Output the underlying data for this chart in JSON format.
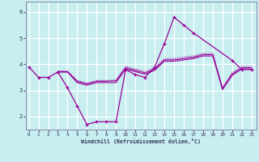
{
  "bg_color": "#c8eef0",
  "line_color": "#990099",
  "grid_color": "#ffffff",
  "xlabel": "Windchill (Refroidissement éolien,°C)",
  "x_ticks": [
    0,
    1,
    2,
    3,
    4,
    5,
    6,
    7,
    8,
    9,
    10,
    11,
    12,
    13,
    14,
    15,
    16,
    17,
    18,
    19,
    20,
    21,
    22,
    23
  ],
  "y_ticks": [
    2,
    3,
    4,
    5,
    6
  ],
  "ylim": [
    1.5,
    6.4
  ],
  "xlim": [
    -0.3,
    23.5
  ],
  "main_x": [
    0,
    1,
    2,
    3,
    4,
    5,
    6,
    7,
    8,
    9,
    10,
    11,
    12,
    13,
    14,
    15,
    16,
    17,
    21,
    22,
    23
  ],
  "main_y": [
    3.9,
    3.5,
    3.5,
    3.7,
    3.1,
    2.4,
    1.7,
    1.8,
    1.8,
    1.8,
    3.8,
    3.6,
    3.5,
    3.9,
    4.8,
    5.8,
    5.5,
    5.2,
    4.15,
    3.8,
    3.8
  ],
  "line2_x": [
    3,
    4,
    5,
    6,
    7,
    8,
    9,
    10,
    11,
    12,
    13,
    14,
    15,
    16,
    17,
    18,
    19,
    20,
    21,
    22,
    23
  ],
  "line2_y": [
    3.7,
    3.7,
    3.3,
    3.2,
    3.3,
    3.3,
    3.3,
    3.82,
    3.72,
    3.62,
    3.77,
    4.12,
    4.12,
    4.17,
    4.22,
    4.32,
    4.32,
    3.03,
    3.58,
    3.82,
    3.82
  ],
  "line3_x": [
    3,
    4,
    5,
    6,
    7,
    8,
    9,
    10,
    11,
    12,
    13,
    14,
    15,
    16,
    17,
    18,
    19,
    20,
    21,
    22,
    23
  ],
  "line3_y": [
    3.72,
    3.72,
    3.35,
    3.25,
    3.35,
    3.35,
    3.37,
    3.87,
    3.77,
    3.67,
    3.82,
    4.17,
    4.17,
    4.22,
    4.27,
    4.37,
    4.37,
    3.07,
    3.63,
    3.87,
    3.87
  ],
  "line4_x": [
    3,
    4,
    5,
    6,
    7,
    8,
    9,
    10,
    11,
    12,
    13,
    14,
    15,
    16,
    17,
    18,
    19,
    20,
    21,
    22,
    23
  ],
  "line4_y": [
    3.74,
    3.74,
    3.38,
    3.28,
    3.38,
    3.38,
    3.4,
    3.92,
    3.82,
    3.72,
    3.87,
    4.22,
    4.22,
    4.28,
    4.32,
    4.42,
    4.42,
    3.12,
    3.68,
    3.92,
    3.92
  ]
}
